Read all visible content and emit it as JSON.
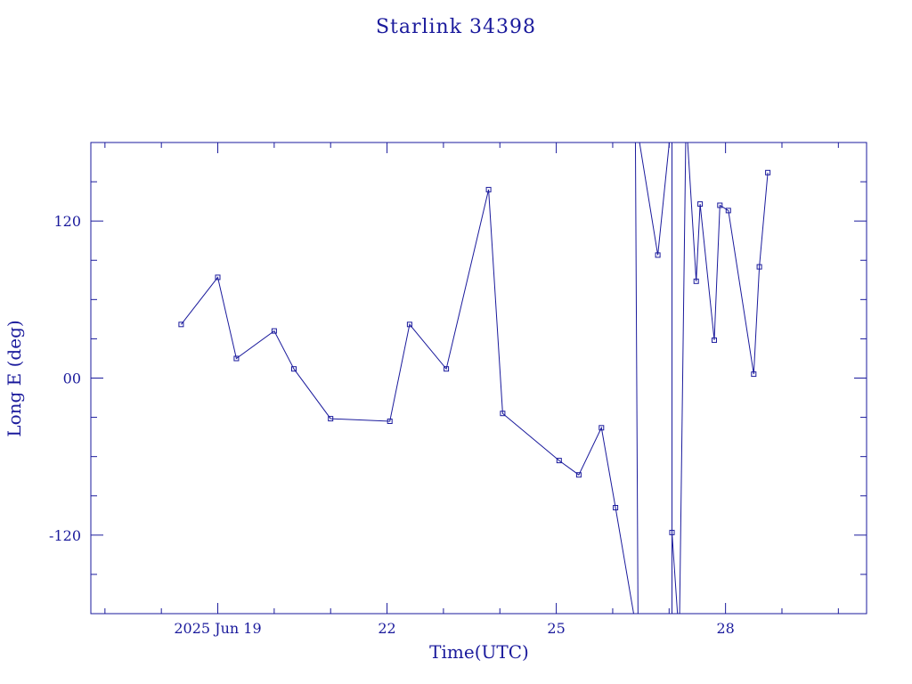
{
  "chart_data": {
    "type": "line",
    "title": "Starlink 34398",
    "xlabel": "Time(UTC)",
    "ylabel": "Long E (deg)",
    "xlim": [
      16.75,
      30.5
    ],
    "ylim": [
      -180,
      180
    ],
    "x_ticks": [
      {
        "value": 19,
        "label": "2025 Jun 19"
      },
      {
        "value": 22,
        "label": "22"
      },
      {
        "value": 25,
        "label": "25"
      },
      {
        "value": 28,
        "label": "28"
      }
    ],
    "y_ticks": [
      {
        "value": 120,
        "label": "120"
      },
      {
        "value": 0,
        "label": "00"
      },
      {
        "value": -120,
        "label": "-120"
      }
    ],
    "color": "#1a1a9c",
    "grid": false,
    "series": [
      {
        "values": [
          {
            "x": 18.35,
            "y": 41
          },
          {
            "x": 19.0,
            "y": 77
          },
          {
            "x": 19.33,
            "y": 15
          },
          {
            "x": 20.0,
            "y": 36
          },
          {
            "x": 20.35,
            "y": 7
          },
          {
            "x": 21.0,
            "y": -31
          },
          {
            "x": 22.05,
            "y": -33
          },
          {
            "x": 22.4,
            "y": 41
          },
          {
            "x": 23.05,
            "y": 7
          },
          {
            "x": 23.8,
            "y": 144
          },
          {
            "x": 24.05,
            "y": -27
          },
          {
            "x": 25.05,
            "y": -63
          },
          {
            "x": 25.4,
            "y": -74
          },
          {
            "x": 25.8,
            "y": -38
          },
          {
            "x": 26.05,
            "y": -99
          },
          {
            "x": 26.45,
            "y": -200
          },
          {
            "x": 26.4,
            "y": 200
          },
          {
            "x": 26.8,
            "y": 94
          },
          {
            "x": 27.05,
            "y": 200
          },
          {
            "x": 27.05,
            "y": -200
          },
          {
            "x": 27.05,
            "y": -118
          },
          {
            "x": 27.18,
            "y": -200
          },
          {
            "x": 27.3,
            "y": 200
          },
          {
            "x": 27.48,
            "y": 74
          },
          {
            "x": 27.55,
            "y": 133
          },
          {
            "x": 27.8,
            "y": 29
          },
          {
            "x": 27.9,
            "y": 132
          },
          {
            "x": 28.05,
            "y": 128
          },
          {
            "x": 28.5,
            "y": 3
          },
          {
            "x": 28.6,
            "y": 85
          },
          {
            "x": 28.75,
            "y": 157
          }
        ]
      }
    ]
  }
}
